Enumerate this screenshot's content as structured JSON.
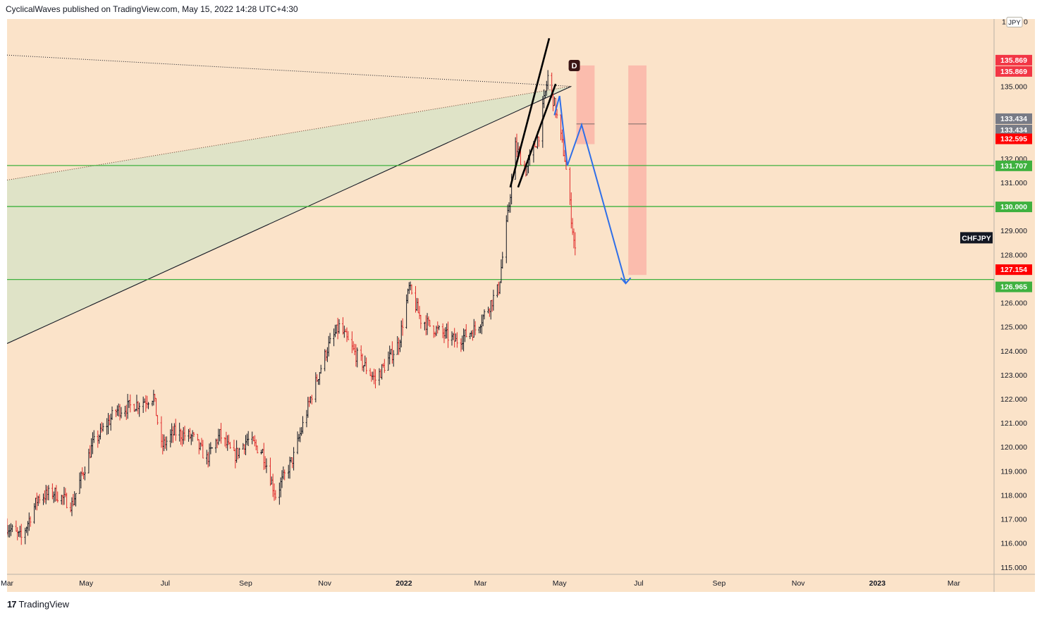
{
  "header": {
    "attribution": "CyclicalWaves published on TradingView.com, May 15, 2022 14:28 UTC+4:30"
  },
  "footer": {
    "brand": "TradingView",
    "logo_text": "17"
  },
  "colors": {
    "background": "#fbe3c9",
    "up": "#131722",
    "down": "#e02a2a",
    "green_line": "#3fb13f",
    "blue_path": "#2f6fe8",
    "red_zone": "#fab5a8",
    "triangle_fill": "#dce2c6"
  },
  "icons": {
    "brand_logo": "tradingview-logo-icon"
  },
  "chart_data": {
    "type": "candlestick",
    "symbol": "CHFJPY",
    "currency_label": "JPY",
    "pattern_label": "D",
    "y_range": [
      114.7,
      137.8
    ],
    "y_ticks": [
      "115.000",
      "116.000",
      "117.000",
      "118.000",
      "119.000",
      "120.000",
      "121.000",
      "122.000",
      "123.000",
      "124.000",
      "125.000",
      "126.000",
      "128.000",
      "129.000",
      "131.000",
      "132.000",
      "133.000",
      "135.000"
    ],
    "y_ticks_top_partial": "1",
    "y_ticks_top_partial_right": "0",
    "x_range": [
      "2021-03-01",
      "2023-04-01"
    ],
    "x_ticks": [
      {
        "label": "Mar",
        "date": "2021-03-01",
        "bold": false
      },
      {
        "label": "May",
        "date": "2021-05-01",
        "bold": false
      },
      {
        "label": "Jul",
        "date": "2021-07-01",
        "bold": false
      },
      {
        "label": "Sep",
        "date": "2021-09-01",
        "bold": false
      },
      {
        "label": "Nov",
        "date": "2021-11-01",
        "bold": false
      },
      {
        "label": "2022",
        "date": "2022-01-01",
        "bold": true
      },
      {
        "label": "Mar",
        "date": "2022-03-01",
        "bold": false
      },
      {
        "label": "May",
        "date": "2022-05-01",
        "bold": false
      },
      {
        "label": "Jul",
        "date": "2022-07-01",
        "bold": false
      },
      {
        "label": "Sep",
        "date": "2022-09-01",
        "bold": false
      },
      {
        "label": "Nov",
        "date": "2022-11-01",
        "bold": false
      },
      {
        "label": "2023",
        "date": "2023-01-01",
        "bold": true
      },
      {
        "label": "Mar",
        "date": "2023-03-01",
        "bold": false
      }
    ],
    "price_path": [
      [
        "2021-03-01",
        116.7
      ],
      [
        "2021-03-12",
        116.2
      ],
      [
        "2021-03-25",
        117.9
      ],
      [
        "2021-04-06",
        118.1
      ],
      [
        "2021-04-20",
        117.6
      ],
      [
        "2021-05-06",
        120.1
      ],
      [
        "2021-05-24",
        121.5
      ],
      [
        "2021-06-10",
        121.8
      ],
      [
        "2021-06-22",
        122.1
      ],
      [
        "2021-06-28",
        120.0
      ],
      [
        "2021-07-08",
        120.6
      ],
      [
        "2021-07-22",
        120.4
      ],
      [
        "2021-08-02",
        119.5
      ],
      [
        "2021-08-12",
        120.5
      ],
      [
        "2021-08-23",
        119.6
      ],
      [
        "2021-09-02",
        120.3
      ],
      [
        "2021-09-14",
        119.8
      ],
      [
        "2021-09-24",
        118.0
      ],
      [
        "2021-10-08",
        119.6
      ],
      [
        "2021-10-22",
        122.2
      ],
      [
        "2021-11-03",
        124.1
      ],
      [
        "2021-11-12",
        125.0
      ],
      [
        "2021-11-24",
        123.9
      ],
      [
        "2021-12-10",
        122.8
      ],
      [
        "2021-12-28",
        124.3
      ],
      [
        "2022-01-05",
        126.6
      ],
      [
        "2022-01-14",
        125.3
      ],
      [
        "2022-01-28",
        124.8
      ],
      [
        "2022-02-10",
        124.4
      ],
      [
        "2022-02-25",
        124.9
      ],
      [
        "2022-03-05",
        125.6
      ],
      [
        "2022-03-15",
        126.6
      ],
      [
        "2022-03-22",
        129.6
      ],
      [
        "2022-03-28",
        132.5
      ],
      [
        "2022-04-05",
        131.5
      ],
      [
        "2022-04-15",
        133.0
      ],
      [
        "2022-04-22",
        135.4
      ],
      [
        "2022-04-28",
        134.0
      ],
      [
        "2022-05-05",
        132.0
      ],
      [
        "2022-05-13",
        128.1
      ]
    ],
    "horizontal_levels": [
      {
        "price": 131.707,
        "label": "131.707"
      },
      {
        "price": 130.0,
        "label": "130.000"
      },
      {
        "price": 126.965,
        "label": "126.965"
      }
    ],
    "price_labels": [
      {
        "price": 135.869,
        "text": "135.869",
        "bg": "#f23645"
      },
      {
        "price": 135.869,
        "text": "135.869",
        "bg": "#f23645",
        "offset": 1
      },
      {
        "price": 133.434,
        "text": "133.434",
        "bg": "#787b86"
      },
      {
        "price": 133.434,
        "text": "133.434",
        "bg": "#787b86",
        "offset": 1
      },
      {
        "price": 132.595,
        "text": "132.595",
        "bg": "#ff0000"
      },
      {
        "price": 127.154,
        "text": "127.154",
        "bg": "#ff0000"
      }
    ],
    "projection_path": [
      [
        "2022-05-01",
        134.6
      ],
      [
        "2022-05-07",
        131.7
      ],
      [
        "2022-05-18",
        133.4
      ],
      [
        "2022-06-21",
        126.8
      ]
    ],
    "red_zones": [
      {
        "from": "2022-05-14",
        "to": "2022-05-28",
        "top": 135.869,
        "bottom": 132.595,
        "mid": 133.434
      },
      {
        "from": "2022-06-23",
        "to": "2022-07-07",
        "top": 135.869,
        "bottom": 127.154,
        "mid": 133.434
      }
    ]
  }
}
